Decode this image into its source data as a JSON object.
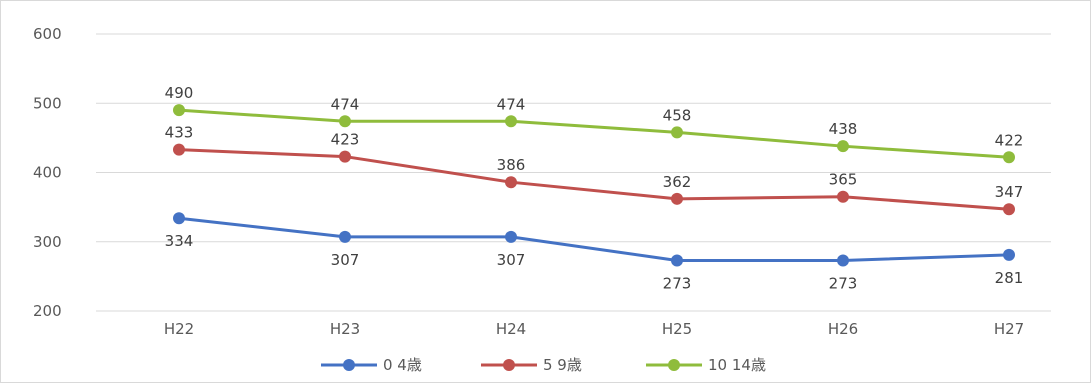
{
  "chart_data": {
    "type": "line",
    "categories": [
      "H22",
      "H23",
      "H24",
      "H25",
      "H26",
      "H27"
    ],
    "ylim": [
      200,
      600
    ],
    "yticks": [
      200,
      300,
      400,
      500,
      600
    ],
    "grid": true,
    "legend_position": "bottom",
    "series": [
      {
        "name": "0 4歳",
        "color": "#4472c4",
        "values": [
          334,
          307,
          307,
          273,
          273,
          281
        ],
        "label_side": "below"
      },
      {
        "name": "5 9歳",
        "color": "#c0504d",
        "values": [
          433,
          423,
          386,
          362,
          365,
          347
        ],
        "label_side": "above"
      },
      {
        "name": "10 14歳",
        "color": "#8fbc3c",
        "values": [
          490,
          474,
          474,
          458,
          438,
          422
        ],
        "label_side": "above"
      }
    ]
  }
}
